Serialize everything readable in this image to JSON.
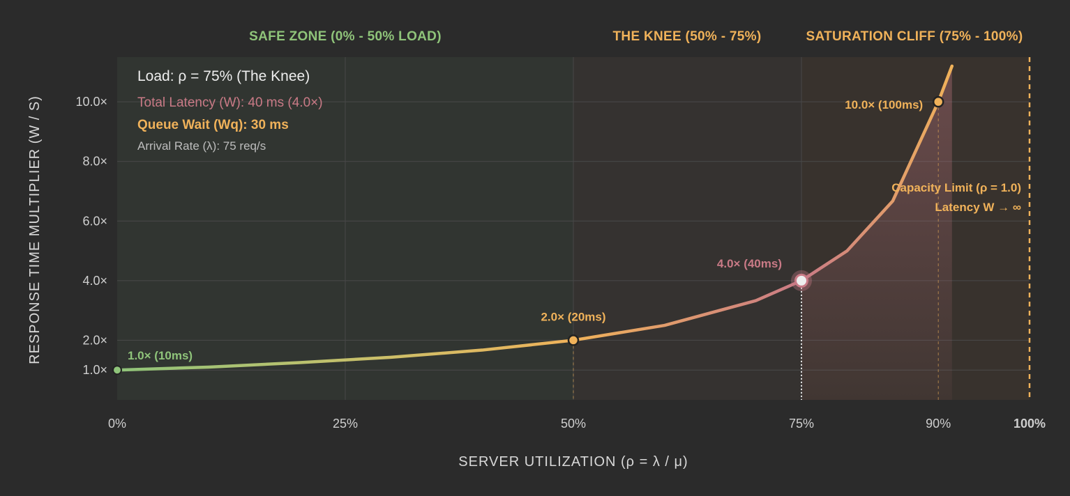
{
  "chart_data": {
    "type": "line",
    "xlabel": "SERVER UTILIZATION (ρ = λ / μ)",
    "ylabel": "RESPONSE TIME MULTIPLIER (W / S)",
    "x_ticks": [
      {
        "value": 0,
        "label": "0%"
      },
      {
        "value": 25,
        "label": "25%"
      },
      {
        "value": 50,
        "label": "50%"
      },
      {
        "value": 75,
        "label": "75%"
      },
      {
        "value": 90,
        "label": "90%"
      },
      {
        "value": 100,
        "label": "100%"
      }
    ],
    "y_ticks": [
      {
        "value": 1,
        "label": "1.0×"
      },
      {
        "value": 2,
        "label": "2.0×"
      },
      {
        "value": 4,
        "label": "4.0×"
      },
      {
        "value": 6,
        "label": "6.0×"
      },
      {
        "value": 8,
        "label": "8.0×"
      },
      {
        "value": 10,
        "label": "10.0×"
      }
    ],
    "xlim": [
      0,
      100
    ],
    "ylim": [
      0,
      11.5
    ],
    "grid": true,
    "zones": [
      {
        "label": "SAFE ZONE (0% - 50% LOAD)",
        "from": 0,
        "to": 50,
        "color": "#8fc47a"
      },
      {
        "label": "THE KNEE (50% - 75%)",
        "from": 50,
        "to": 75,
        "color": "#f0b25a"
      },
      {
        "label": "SATURATION CLIFF (75% - 100%)",
        "from": 75,
        "to": 100,
        "color": "#f0b25a"
      }
    ],
    "series": [
      {
        "x": [
          0,
          10,
          20,
          30,
          40,
          50,
          60,
          70,
          75,
          80,
          85,
          90,
          91.5
        ],
        "y": [
          1.0,
          1.1,
          1.25,
          1.43,
          1.67,
          2.0,
          2.5,
          3.33,
          4.0,
          5.0,
          6.67,
          10.0,
          11.2
        ]
      }
    ],
    "highlights": [
      {
        "x": 0,
        "y": 1.0,
        "label": "1.0× (10ms)",
        "color": "#8fc47a"
      },
      {
        "x": 50,
        "y": 2.0,
        "label": "2.0× (20ms)",
        "color": "#f0b25a"
      },
      {
        "x": 75,
        "y": 4.0,
        "label": "4.0× (40ms)",
        "color": "#c97a86"
      },
      {
        "x": 90,
        "y": 10.0,
        "label": "10.0× (100ms)",
        "color": "#f0b25a"
      }
    ],
    "capacity_limit": {
      "x": 100,
      "line1": "Capacity Limit (ρ = 1.0)",
      "line2": "Latency W → ∞"
    },
    "info_box": {
      "load": "Load: ρ = 75% (The Knee)",
      "total_latency": "Total Latency (W): 40 ms (4.0×)",
      "queue_wait": "Queue Wait (Wq): 30 ms",
      "arrival_rate": "Arrival Rate (λ): 75 req/s"
    },
    "colors": {
      "safe": "#8fc47a",
      "knee": "#f0b25a",
      "cliff": "#f0b25a",
      "latency": "#c97a86",
      "background": "#2b2b2b",
      "plot_bg": "#333333"
    }
  }
}
